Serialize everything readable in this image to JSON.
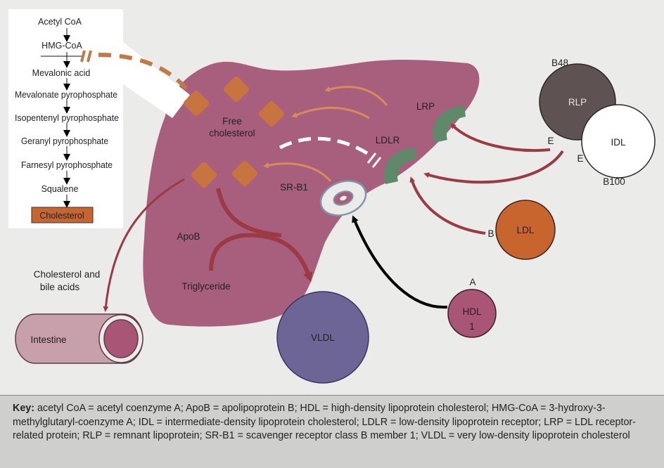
{
  "pathway": {
    "steps": [
      "Acetyl CoA",
      "HMG-CoA",
      "Mevalonic acid",
      "Mevalonate pyrophosphate",
      "Isopentenyl pyrophosphate",
      "Geranyl pyrophosphate",
      "Farnesyl pyrophosphate",
      "Squalene",
      "Cholesterol"
    ]
  },
  "liver": {
    "free_cholesterol": [
      "Free",
      "cholesterol"
    ],
    "apob": "ApoB",
    "triglyceride": "Triglyceride",
    "srb1": "SR-B1",
    "ldlr": "LDLR",
    "lrp": "LRP"
  },
  "outputs": {
    "bile": [
      "Cholesterol and",
      "bile acids"
    ],
    "intestine": "Intestine",
    "vldl": "VLDL"
  },
  "particles": {
    "rlp": "RLP",
    "b48": "B48",
    "idl": "IDL",
    "e1": "E",
    "e2": "E",
    "b100": "B100",
    "ldl": "LDL",
    "b": "B",
    "hdl": [
      "HDL",
      "1"
    ],
    "a": "A"
  },
  "key": {
    "label": "Key:",
    "text": "acetyl CoA = acetyl coenzyme A; ApoB = apolipoprotein B; HDL = high-density lipoprotein cholesterol; HMG-CoA = 3-hydroxy-3-methylglutaryl-coenzyme A; IDL = intermediate-density lipoprotein cholesterol; LDLR = low-density lipoprotein receptor; LRP = LDL receptor-related protein; RLP = remnant lipoprotein; SR-B1 = scavenger receptor class B member 1; VLDL = very low-density lipoprotein cholesterol"
  },
  "colors": {
    "liver": "#a85f7d",
    "droplet": "#c8743f",
    "arrow": "#9b3a43",
    "receptor": "#5e8a6a",
    "rlp": "#5e5352",
    "ldl": "#c8652f",
    "vldl": "#6c6596",
    "hdl": "#a85576",
    "intestine": "#c7a0ac"
  }
}
